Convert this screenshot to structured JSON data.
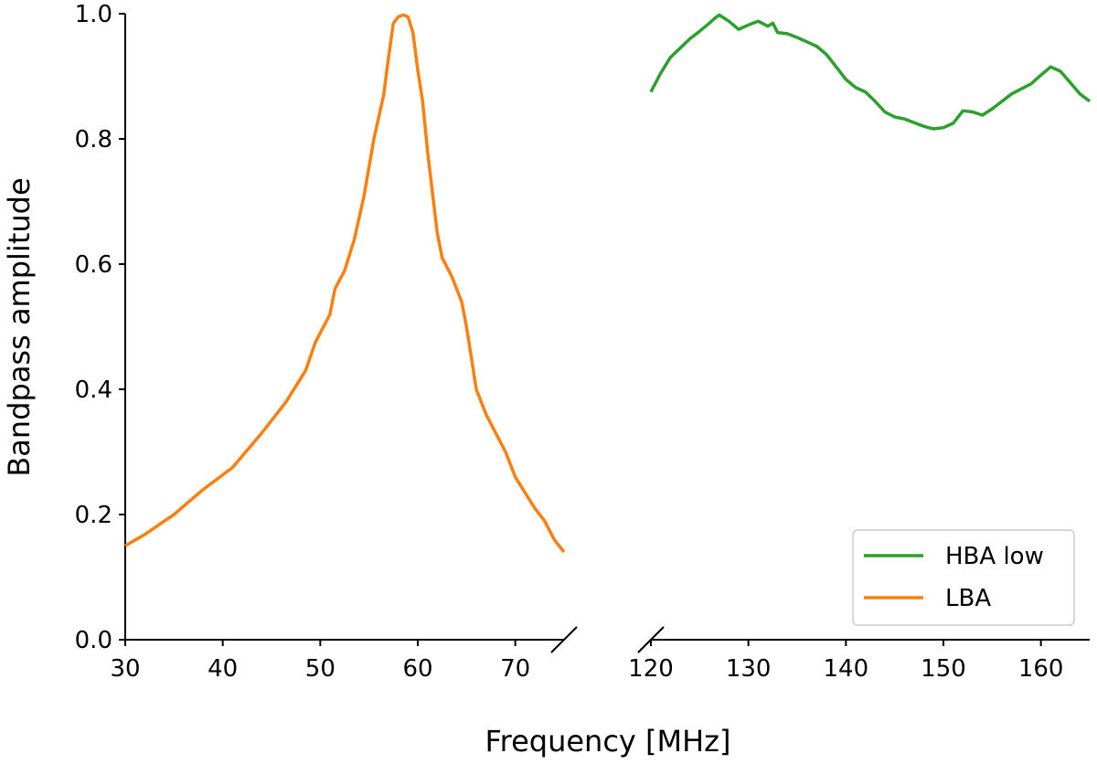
{
  "chart_data": {
    "type": "line",
    "ylabel": "Bandpass amplitude",
    "xlabel": "Frequency [MHz]",
    "ylim": [
      0,
      1
    ],
    "yticks": [
      "0.0",
      "0.2",
      "0.4",
      "0.6",
      "0.8",
      "1.0"
    ],
    "ytick_values": [
      0.0,
      0.2,
      0.4,
      0.6,
      0.8,
      1.0
    ],
    "grid": false,
    "legend_position": "bottom-right",
    "panels": [
      {
        "name": "lba-panel",
        "xlim": [
          30,
          75
        ],
        "xticks": [
          "30",
          "40",
          "50",
          "60",
          "70"
        ],
        "xtick_values": [
          30,
          40,
          50,
          60,
          70
        ]
      },
      {
        "name": "hba-panel",
        "xlim": [
          120,
          165
        ],
        "xticks": [
          "120",
          "130",
          "140",
          "150",
          "160"
        ],
        "xtick_values": [
          120,
          130,
          140,
          150,
          160
        ]
      }
    ],
    "series": [
      {
        "name": "HBA low",
        "color": "#2ca02c",
        "panel": 1,
        "x": [
          120,
          120.5,
          121,
          122,
          123,
          124,
          125,
          126,
          126.5,
          127,
          128,
          129,
          130,
          131,
          132,
          132.5,
          133,
          134,
          135,
          136,
          137,
          138,
          139,
          140,
          141,
          142,
          143,
          144,
          145,
          146,
          147,
          148,
          149,
          150,
          151,
          152,
          153,
          154,
          155,
          156,
          157,
          158,
          159,
          160,
          161,
          162,
          163,
          164,
          165
        ],
        "y": [
          0.875,
          0.89,
          0.905,
          0.93,
          0.945,
          0.96,
          0.972,
          0.985,
          0.992,
          0.998,
          0.988,
          0.975,
          0.982,
          0.988,
          0.98,
          0.985,
          0.97,
          0.968,
          0.962,
          0.955,
          0.948,
          0.935,
          0.915,
          0.895,
          0.882,
          0.875,
          0.86,
          0.843,
          0.835,
          0.832,
          0.826,
          0.82,
          0.816,
          0.818,
          0.825,
          0.845,
          0.843,
          0.838,
          0.848,
          0.86,
          0.872,
          0.88,
          0.888,
          0.902,
          0.915,
          0.908,
          0.89,
          0.872,
          0.86
        ]
      },
      {
        "name": "LBA",
        "color": "#ff7f0e",
        "panel": 0,
        "x": [
          30,
          32,
          35,
          38,
          41,
          44,
          46.5,
          48.5,
          49.5,
          51,
          51.5,
          52.5,
          53.5,
          54.5,
          55.5,
          56.5,
          57,
          57.5,
          58,
          58.5,
          59,
          59.5,
          60,
          60.5,
          61,
          62,
          62.5,
          63.5,
          64.5,
          65,
          65.5,
          66,
          67,
          68,
          69,
          70,
          71,
          72,
          73,
          74,
          75
        ],
        "y": [
          0.15,
          0.168,
          0.2,
          0.24,
          0.275,
          0.33,
          0.38,
          0.43,
          0.475,
          0.52,
          0.56,
          0.59,
          0.64,
          0.71,
          0.8,
          0.87,
          0.93,
          0.985,
          0.995,
          0.998,
          0.995,
          0.97,
          0.91,
          0.86,
          0.78,
          0.65,
          0.61,
          0.58,
          0.54,
          0.5,
          0.45,
          0.4,
          0.36,
          0.33,
          0.3,
          0.26,
          0.235,
          0.21,
          0.19,
          0.16,
          0.14
        ]
      }
    ]
  }
}
